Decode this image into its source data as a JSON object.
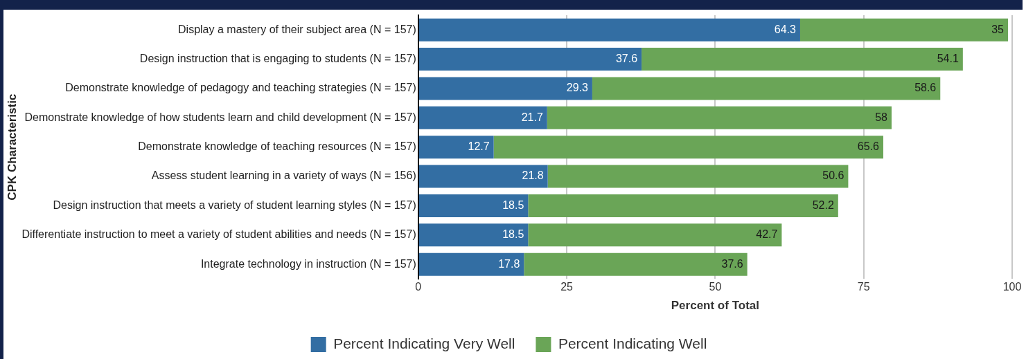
{
  "chart_data": {
    "type": "bar",
    "orientation": "horizontal",
    "stacked": true,
    "xlabel": "Percent of Total",
    "ylabel": "CPK Characteristic",
    "categories": [
      "Display a mastery of their subject area (N = 157)",
      "Design instruction that is engaging to students (N = 157)",
      "Demonstrate knowledge of pedagogy and teaching strategies (N = 157)",
      "Demonstrate knowledge of how students learn and child development (N = 157)",
      "Demonstrate knowledge of teaching resources (N = 157)",
      "Assess student learning in a variety of ways (N = 156)",
      "Design instruction that meets a variety of student learning styles (N = 157)",
      "Differentiate instruction to meet a variety of student abilities and needs (N = 157)",
      "Integrate technology in instruction (N = 157)"
    ],
    "series": [
      {
        "name": "Percent Indicating Very Well",
        "color": "#336ea3",
        "values": [
          64.3,
          37.6,
          29.3,
          21.7,
          12.7,
          21.8,
          18.5,
          18.5,
          17.8
        ]
      },
      {
        "name": "Percent Indicating Well",
        "color": "#6aa557",
        "values": [
          35,
          54.1,
          58.6,
          58,
          65.6,
          50.6,
          52.2,
          42.7,
          37.6
        ]
      }
    ],
    "xlim": [
      0,
      100
    ],
    "xticks": [
      0,
      25,
      50,
      75,
      100
    ],
    "grid": "x",
    "legend": "bottom",
    "data_labels": true
  }
}
